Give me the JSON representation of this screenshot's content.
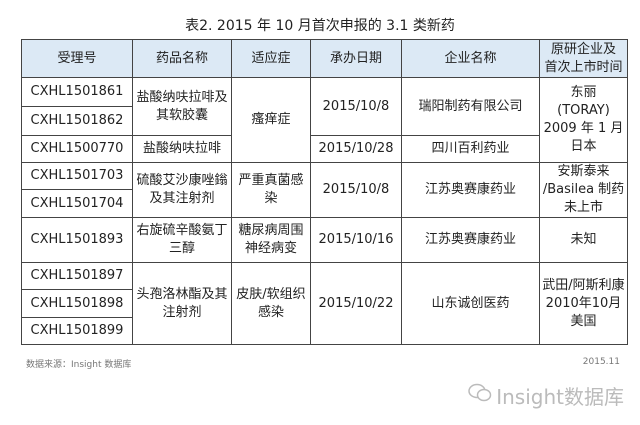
{
  "title": "表2. 2015 年 10 月首次申报的 3.1 类新药",
  "headers": [
    "受理号",
    "药品名称",
    "适应症",
    "承办日期",
    "企业名称",
    "原研企业及\n首次上市时间"
  ],
  "rows": {
    "r1": {
      "id": "CXHL1501861",
      "drug": "盐酸纳呋拉啡及其软胶囊",
      "indication": "瘙痒症",
      "date": "2015/10/8",
      "company": "瑞阳制药有限公司",
      "original": "东丽\n(TORAY)\n2009 年 1 月\n日本"
    },
    "r2": {
      "id": "CXHL1501862"
    },
    "r3": {
      "id": "CXHL1500770",
      "drug": "盐酸纳呋拉啡",
      "date": "2015/10/28",
      "company": "四川百利药业"
    },
    "r4": {
      "id": "CXHL1501703",
      "drug": "硫酸艾沙康唑鎓及其注射剂",
      "indication": "严重真菌感染",
      "date": "2015/10/8",
      "company": "江苏奥赛康药业",
      "original": "安斯泰来\n/Basilea 制药\n未上市"
    },
    "r5": {
      "id": "CXHL1501704"
    },
    "r6": {
      "id": "CXHL1501893",
      "drug": "右旋硫辛酸氨丁三醇",
      "indication": "糖尿病周围神经病变",
      "date": "2015/10/16",
      "company": "江苏奥赛康药业",
      "original": "未知"
    },
    "r7": {
      "id": "CXHL1501897",
      "drug": "头孢洛林酯及其注射剂",
      "indication": "皮肤/软组织感染",
      "date": "2015/10/22",
      "company": "山东诚创医药",
      "original": "武田/阿斯利康\n2010年10月\n美国"
    },
    "r8": {
      "id": "CXHL1501898"
    },
    "r9": {
      "id": "CXHL1501899"
    }
  },
  "footer": {
    "source": "数据来源：Insight 数据库",
    "date": "2015.11"
  },
  "logo": {
    "text": "Insight数据库",
    "icon": "wechat-icon"
  },
  "colors": {
    "header_bg": "#dce9f5",
    "border": "#444444"
  }
}
